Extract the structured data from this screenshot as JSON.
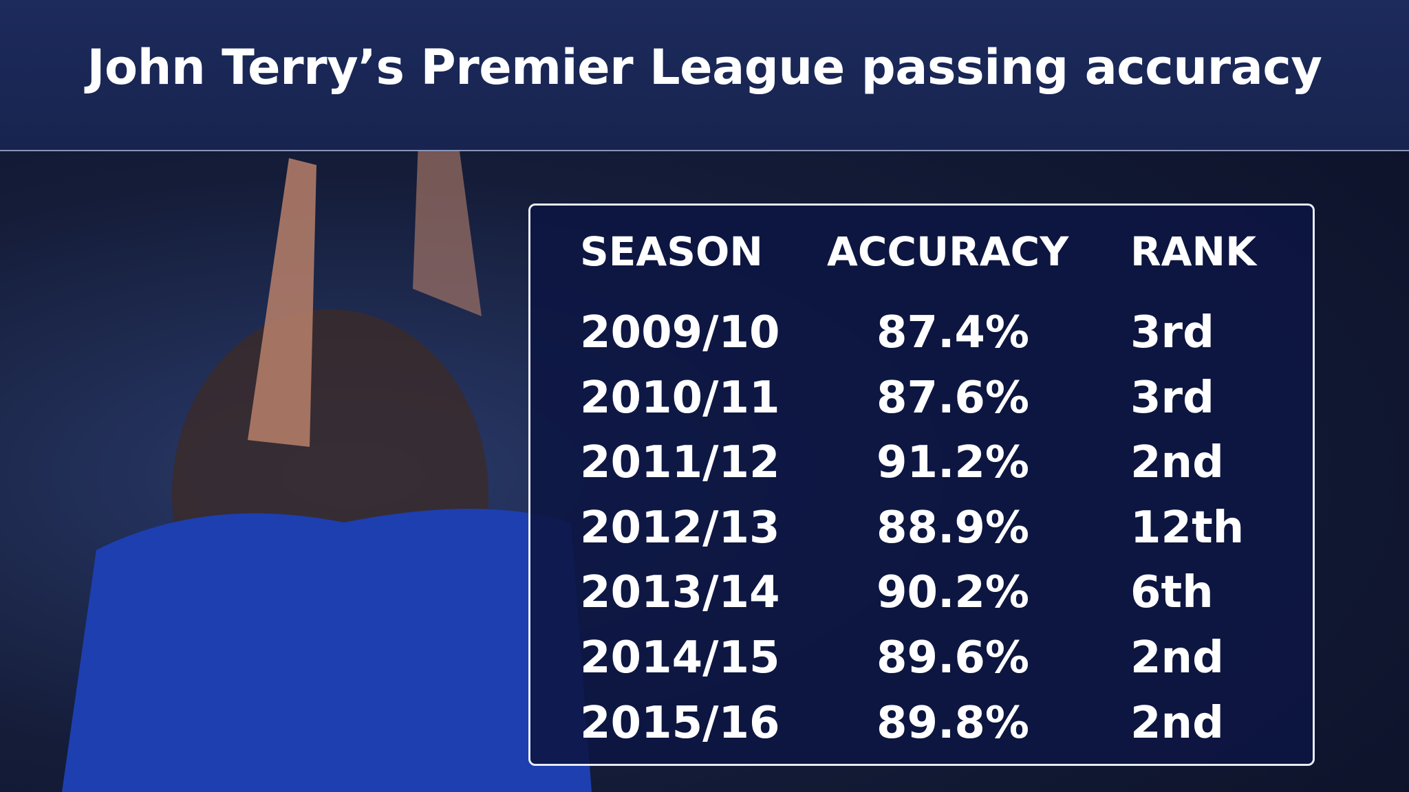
{
  "header": {
    "title": "John Terry’s Premier League passing accuracy"
  },
  "table": {
    "columns": [
      "SEASON",
      "ACCURACY",
      "RANK"
    ],
    "rows": [
      [
        "2009/10",
        "87.4%",
        "3rd"
      ],
      [
        "2010/11",
        "87.6%",
        "3rd"
      ],
      [
        "2011/12",
        "91.2%",
        "2nd"
      ],
      [
        "2012/13",
        "88.9%",
        "12th"
      ],
      [
        "2013/14",
        "90.2%",
        "6th"
      ],
      [
        "2014/15",
        "89.6%",
        "2nd"
      ],
      [
        "2015/16",
        "89.8%",
        "2nd"
      ]
    ]
  }
}
